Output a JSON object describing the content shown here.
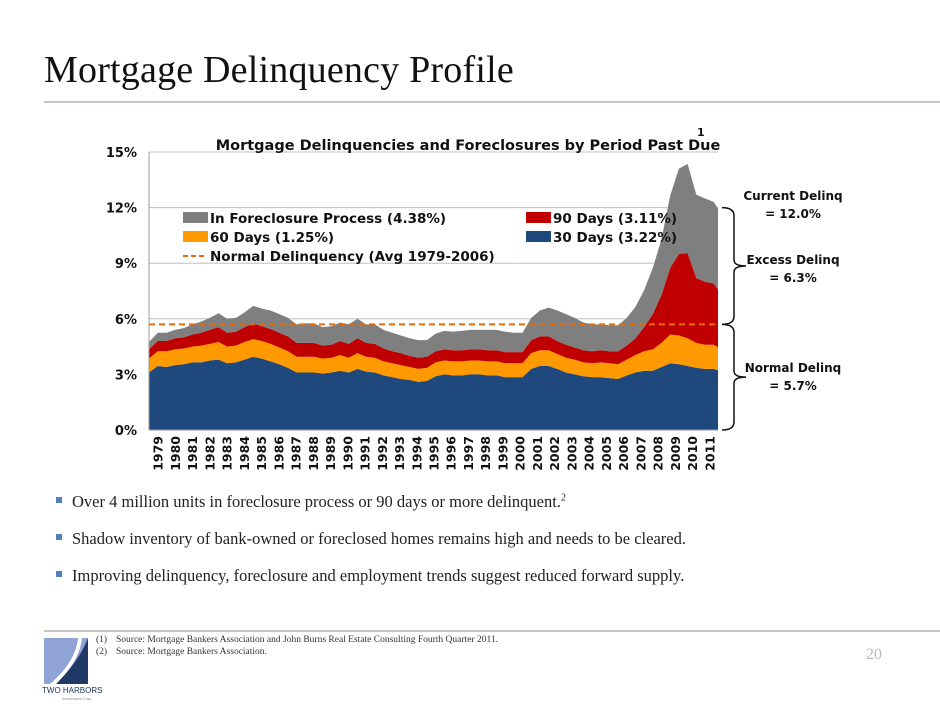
{
  "page": {
    "title": "Mortgage Delinquency Profile",
    "page_number": "20"
  },
  "bullets": [
    {
      "text": "Over 4 million units in foreclosure process or 90 days or more delinquent.",
      "sup": "2"
    },
    {
      "text": "Shadow inventory of bank-owned or foreclosed homes remains high and needs to be cleared.",
      "sup": ""
    },
    {
      "text": "Improving delinquency, foreclosure and employment trends suggest reduced forward supply.",
      "sup": ""
    }
  ],
  "footnotes": [
    {
      "num": "(1)",
      "text": "Source:  Mortgage Bankers Association and John Burns Real Estate Consulting Fourth Quarter 2011."
    },
    {
      "num": "(2)",
      "text": "Source:  Mortgage Bankers Association."
    }
  ],
  "logo": {
    "name": "TWO HARBORS",
    "sub": "Investment Corp."
  },
  "annotations": [
    {
      "label": "Current Delinq",
      "value": "= 12.0%"
    },
    {
      "label": "Excess Delinq",
      "value": "= 6.3%"
    },
    {
      "label": "Normal Delinq",
      "value": "= 5.7%"
    }
  ],
  "colors": {
    "foreclosure": "#7f7f7f",
    "days90": "#c00000",
    "days60": "#ff9900",
    "days30": "#1f497d",
    "normal_line": "#e46c0a"
  },
  "chart_data": {
    "type": "area",
    "stacked": true,
    "title": "Mortgage Delinquencies and Foreclosures by Period Past Due",
    "title_superscript": "1",
    "xlabel": "",
    "ylabel": "",
    "ylim": [
      0,
      15
    ],
    "yticks": [
      "0%",
      "3%",
      "6%",
      "9%",
      "12%",
      "15%"
    ],
    "ytick_values": [
      0,
      3,
      6,
      9,
      12,
      15
    ],
    "xticks": [
      "1979",
      "1980",
      "1981",
      "1982",
      "1983",
      "1984",
      "1985",
      "1986",
      "1987",
      "1988",
      "1989",
      "1990",
      "1991",
      "1992",
      "1993",
      "1994",
      "1995",
      "1996",
      "1997",
      "1998",
      "1999",
      "2000",
      "2001",
      "2002",
      "2003",
      "2004",
      "2005",
      "2006",
      "2007",
      "2008",
      "2009",
      "2010",
      "2011"
    ],
    "grid": true,
    "legend_position": "top-left inside",
    "x": [
      1979.0,
      1979.5,
      1980.0,
      1980.5,
      1981.0,
      1981.5,
      1982.0,
      1982.5,
      1983.0,
      1983.5,
      1984.0,
      1984.5,
      1985.0,
      1985.5,
      1986.0,
      1986.5,
      1987.0,
      1987.5,
      1988.0,
      1988.5,
      1989.0,
      1989.5,
      1990.0,
      1990.5,
      1991.0,
      1991.5,
      1992.0,
      1992.5,
      1993.0,
      1993.5,
      1994.0,
      1994.5,
      1995.0,
      1995.5,
      1996.0,
      1996.5,
      1997.0,
      1997.5,
      1998.0,
      1998.5,
      1999.0,
      1999.5,
      2000.0,
      2000.5,
      2001.0,
      2001.5,
      2002.0,
      2002.5,
      2003.0,
      2003.5,
      2004.0,
      2004.5,
      2005.0,
      2005.5,
      2006.0,
      2006.5,
      2007.0,
      2007.5,
      2008.0,
      2008.5,
      2009.0,
      2009.5,
      2010.0,
      2010.5,
      2011.0,
      2011.5,
      2011.75
    ],
    "series": [
      {
        "name": "30 Days (3.22%)",
        "key": "days30",
        "values": [
          3.1,
          3.45,
          3.4,
          3.5,
          3.55,
          3.65,
          3.65,
          3.75,
          3.8,
          3.6,
          3.65,
          3.8,
          3.95,
          3.85,
          3.7,
          3.55,
          3.35,
          3.1,
          3.1,
          3.1,
          3.05,
          3.1,
          3.2,
          3.1,
          3.3,
          3.15,
          3.1,
          2.95,
          2.85,
          2.75,
          2.7,
          2.6,
          2.65,
          2.9,
          3.0,
          2.95,
          2.95,
          3.0,
          3.0,
          2.95,
          2.95,
          2.85,
          2.85,
          2.85,
          3.3,
          3.45,
          3.45,
          3.3,
          3.1,
          3.0,
          2.9,
          2.85,
          2.85,
          2.8,
          2.75,
          2.95,
          3.1,
          3.2,
          3.2,
          3.4,
          3.6,
          3.55,
          3.45,
          3.35,
          3.3,
          3.3,
          3.22
        ]
      },
      {
        "name": "60 Days (1.25%)",
        "key": "days60",
        "values": [
          0.75,
          0.8,
          0.85,
          0.85,
          0.85,
          0.85,
          0.9,
          0.9,
          0.95,
          0.9,
          0.9,
          0.95,
          0.95,
          0.95,
          0.95,
          0.9,
          0.9,
          0.85,
          0.85,
          0.85,
          0.8,
          0.8,
          0.85,
          0.8,
          0.85,
          0.8,
          0.8,
          0.75,
          0.75,
          0.75,
          0.7,
          0.7,
          0.7,
          0.75,
          0.75,
          0.75,
          0.75,
          0.75,
          0.75,
          0.75,
          0.75,
          0.75,
          0.75,
          0.75,
          0.85,
          0.85,
          0.85,
          0.8,
          0.8,
          0.8,
          0.75,
          0.75,
          0.8,
          0.8,
          0.8,
          0.85,
          0.95,
          1.05,
          1.15,
          1.3,
          1.55,
          1.55,
          1.5,
          1.35,
          1.3,
          1.3,
          1.25
        ]
      },
      {
        "name": "90 Days (3.11%)",
        "key": "days90",
        "values": [
          0.5,
          0.55,
          0.55,
          0.6,
          0.6,
          0.65,
          0.7,
          0.75,
          0.8,
          0.75,
          0.75,
          0.8,
          0.85,
          0.8,
          0.8,
          0.8,
          0.8,
          0.75,
          0.75,
          0.75,
          0.7,
          0.7,
          0.75,
          0.75,
          0.8,
          0.75,
          0.75,
          0.7,
          0.65,
          0.65,
          0.6,
          0.6,
          0.6,
          0.6,
          0.6,
          0.6,
          0.6,
          0.6,
          0.6,
          0.6,
          0.6,
          0.6,
          0.6,
          0.6,
          0.7,
          0.75,
          0.75,
          0.7,
          0.7,
          0.65,
          0.65,
          0.65,
          0.65,
          0.65,
          0.7,
          0.75,
          0.9,
          1.3,
          1.9,
          2.6,
          3.6,
          4.4,
          4.6,
          3.5,
          3.4,
          3.3,
          3.11
        ]
      },
      {
        "name": "In Foreclosure Process (4.38%)",
        "key": "foreclosure",
        "values": [
          0.4,
          0.45,
          0.45,
          0.45,
          0.5,
          0.55,
          0.6,
          0.65,
          0.75,
          0.75,
          0.75,
          0.8,
          0.95,
          0.95,
          1.0,
          1.0,
          1.0,
          1.0,
          1.05,
          1.05,
          1.0,
          1.0,
          1.0,
          1.05,
          1.05,
          1.0,
          1.05,
          1.0,
          1.0,
          0.95,
          0.95,
          0.95,
          0.9,
          0.95,
          1.0,
          1.0,
          1.05,
          1.05,
          1.05,
          1.1,
          1.1,
          1.1,
          1.05,
          1.05,
          1.2,
          1.4,
          1.55,
          1.65,
          1.65,
          1.6,
          1.5,
          1.45,
          1.4,
          1.4,
          1.4,
          1.5,
          1.7,
          2.0,
          2.5,
          3.0,
          3.9,
          4.6,
          4.8,
          4.5,
          4.5,
          4.4,
          4.38
        ]
      }
    ],
    "reference_line": {
      "name": "Normal Delinquency (Avg 1979-2006)",
      "value": 5.7,
      "style": "dashed"
    },
    "legend": [
      {
        "label": "In Foreclosure Process (4.38%)",
        "key": "foreclosure"
      },
      {
        "label": "90 Days (3.11%)",
        "key": "days90"
      },
      {
        "label": "60 Days (1.25%)",
        "key": "days60"
      },
      {
        "label": "30 Days (3.22%)",
        "key": "days30"
      },
      {
        "label": "Normal Delinquency (Avg 1979-2006)",
        "key": "normal_line"
      }
    ]
  }
}
